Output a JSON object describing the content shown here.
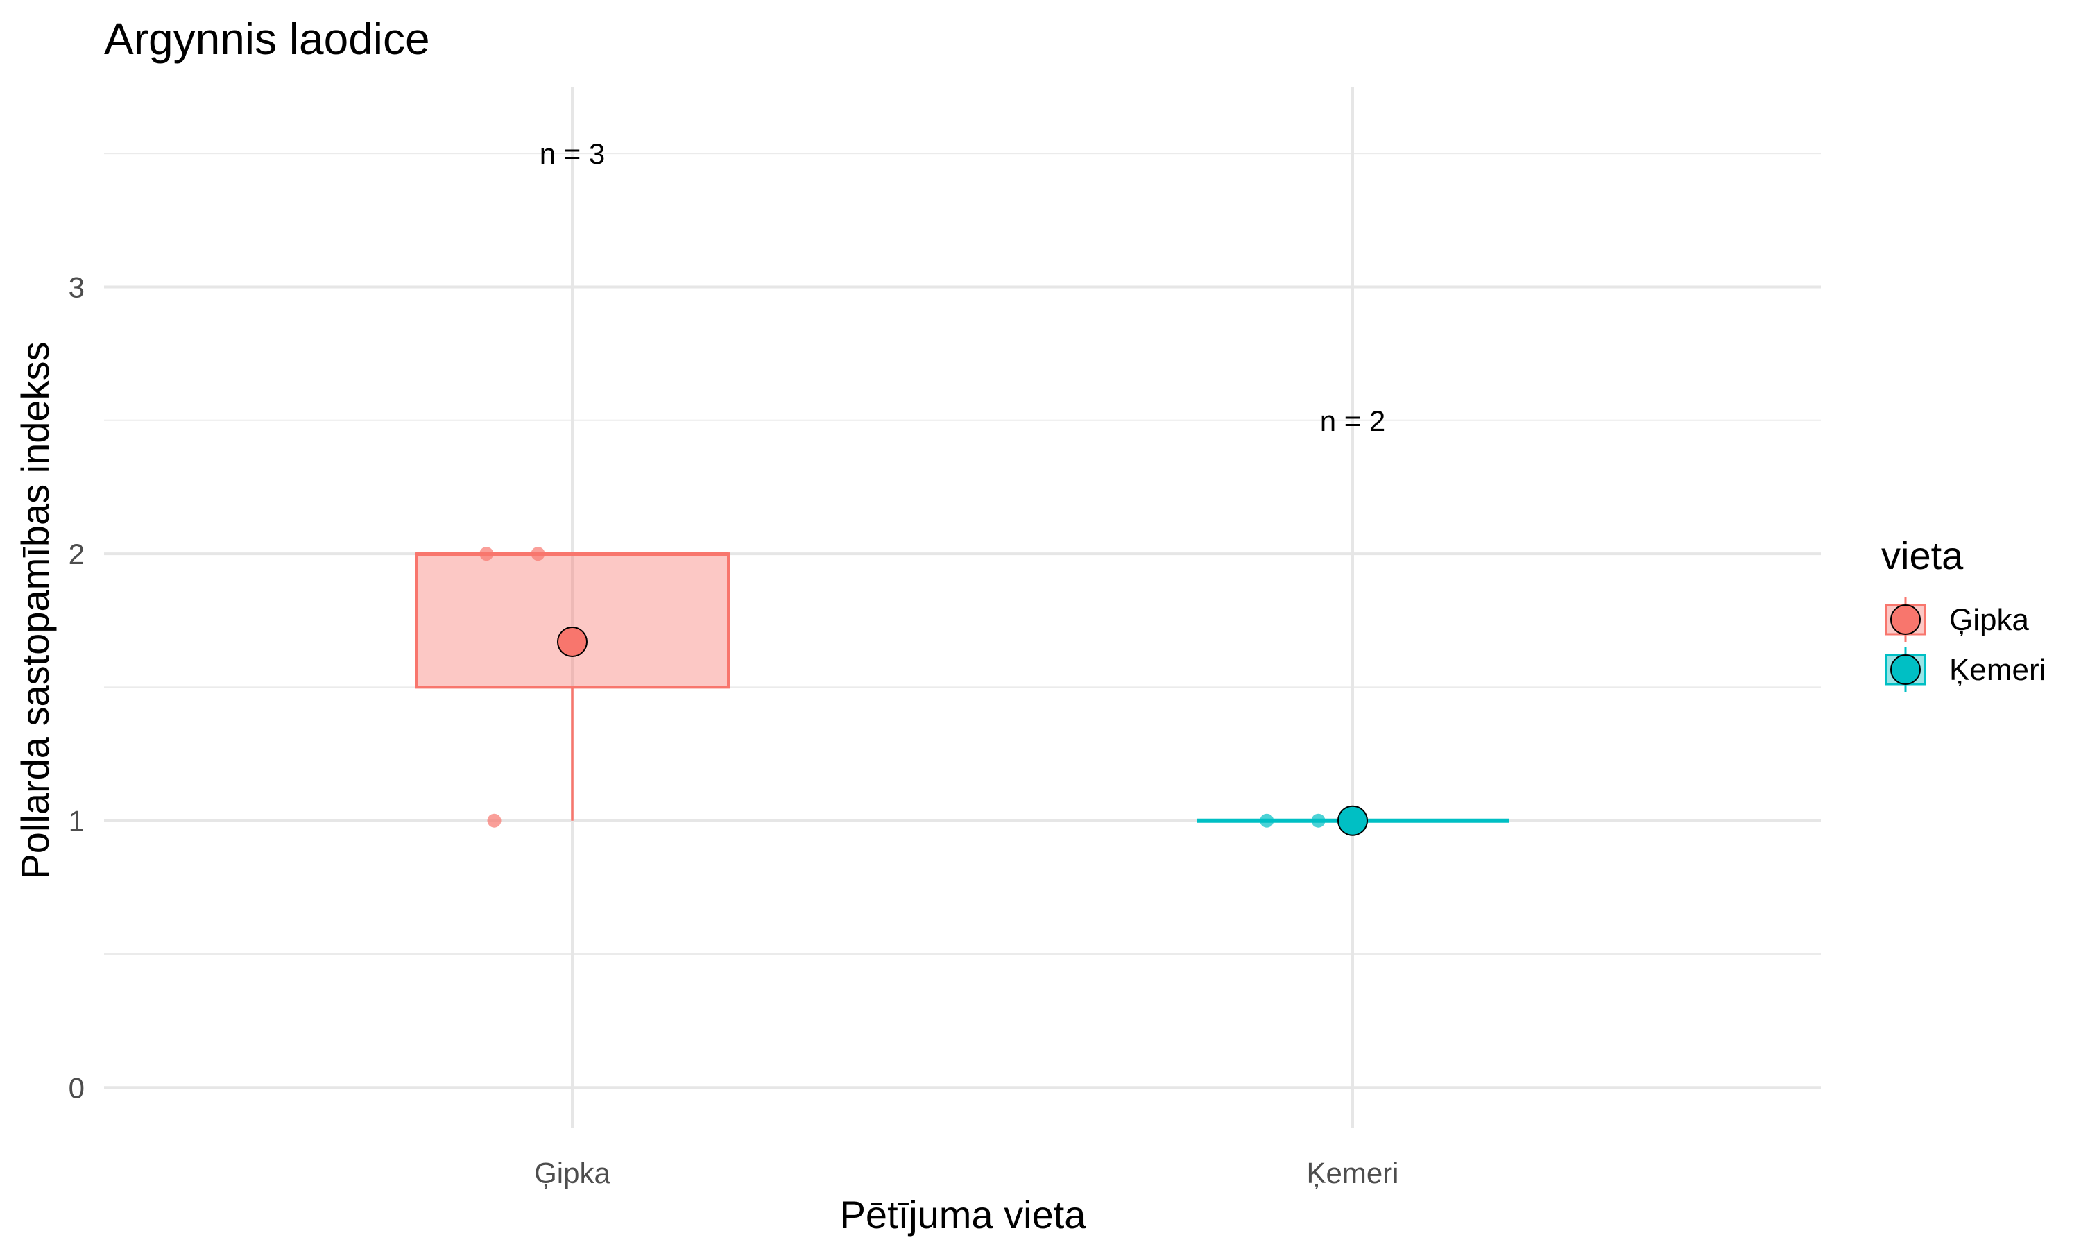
{
  "chart_data": {
    "type": "box",
    "title": "Argynnis laodice",
    "xlabel": "Pētījuma vieta",
    "ylabel": "Pollarda sastopamības indekss",
    "categories": [
      "Ģipka",
      "Ķemeri"
    ],
    "ylim": [
      -0.15,
      3.75
    ],
    "yticks": [
      0,
      1,
      2,
      3
    ],
    "grid": true,
    "colors": {
      "Ģipka": "#F8766D",
      "Ķemeri": "#00BFC4"
    },
    "boxes": [
      {
        "name": "Ģipka",
        "min": 1,
        "q1": 1.5,
        "median": 2,
        "q3": 2,
        "max": 2,
        "mean": 1.67,
        "n_label": "n = 3",
        "n_label_y": 3.5,
        "points": [
          2,
          2,
          1
        ]
      },
      {
        "name": "Ķemeri",
        "min": 1,
        "q1": 1,
        "median": 1,
        "q3": 1,
        "max": 1,
        "mean": 1,
        "n_label": "n = 2",
        "n_label_y": 2.5,
        "points": [
          1,
          1
        ]
      }
    ],
    "legend": {
      "title": "vieta",
      "position": "right",
      "entries": [
        "Ģipka",
        "Ķemeri"
      ]
    }
  }
}
